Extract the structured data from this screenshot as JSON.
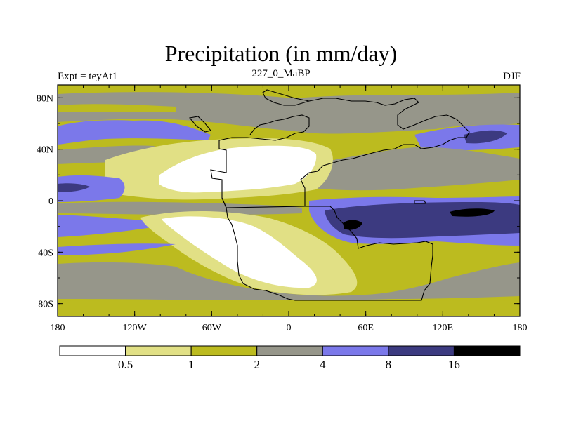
{
  "title": "Precipitation (in mm/day)",
  "left_label": "Expt = teyAt1",
  "center_label": "227_0_MaBP",
  "right_label": "DJF",
  "colors": {
    "c0": "#ffffff",
    "c1": "#e1e085",
    "c2": "#bcbb1f",
    "c3": "#96968a",
    "c4": "#7b78ea",
    "c5": "#3c3a80",
    "c6": "#000000"
  },
  "chart_data": {
    "type": "filled-contour-map",
    "title": "Precipitation (in mm/day)",
    "variable": "Precipitation",
    "units": "mm/day",
    "experiment_label": "Expt = teyAt1",
    "period_label": "227_0_MaBP",
    "season": "DJF",
    "x_axis": {
      "range": [
        -180,
        180
      ],
      "ticks": [
        -180,
        -120,
        -60,
        0,
        60,
        120,
        180
      ],
      "tick_labels": [
        "180",
        "120W",
        "60W",
        "0",
        "60E",
        "120E",
        "180"
      ]
    },
    "y_axis": {
      "range": [
        -90,
        90
      ],
      "ticks": [
        80,
        40,
        0,
        -40,
        -80
      ],
      "tick_labels": [
        "80N",
        "40N",
        "0",
        "40S",
        "80S"
      ]
    },
    "colorbar": {
      "levels": [
        0.5,
        1,
        2,
        4,
        8,
        16
      ],
      "level_labels": [
        "0.5",
        "1",
        "2",
        "4",
        "8",
        "16"
      ],
      "fill_colors": [
        "#ffffff",
        "#e1e085",
        "#bcbb1f",
        "#96968a",
        "#7b78ea",
        "#3c3a80",
        "#000000"
      ]
    }
  }
}
